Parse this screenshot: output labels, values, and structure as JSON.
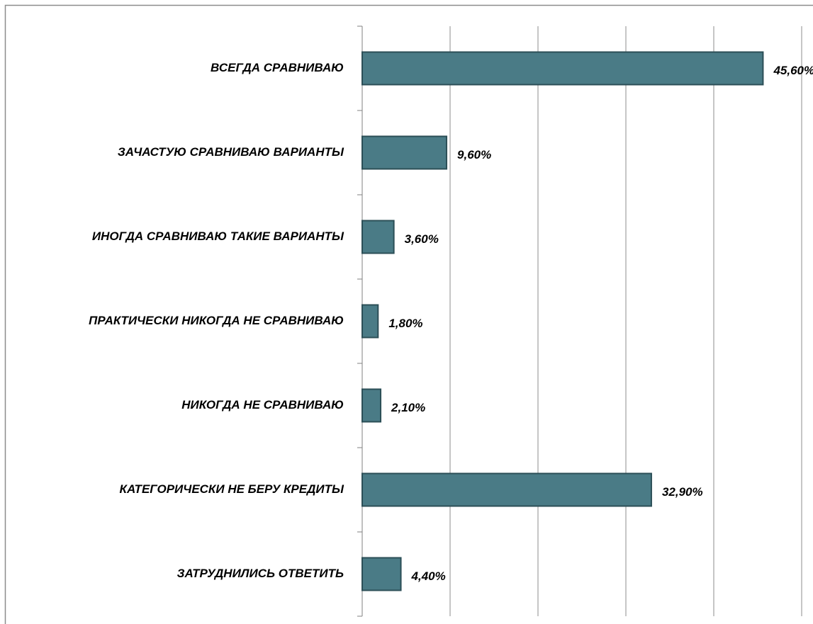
{
  "chart_data": {
    "type": "barh",
    "categories": [
      "ВСЕГДА СРАВНИВАЮ",
      "ЗАЧАСТУЮ СРАВНИВАЮ ВАРИАНТЫ",
      "ИНОГДА СРАВНИВАЮ ТАКИЕ ВАРИАНТЫ",
      "ПРАКТИЧЕСКИ НИКОГДА НЕ СРАВНИВАЮ",
      "НИКОГДА НЕ СРАВНИВАЮ",
      "КАТЕГОРИЧЕСКИ НЕ БЕРУ КРЕДИТЫ",
      "ЗАТРУДНИЛИСЬ ОТВЕТИТЬ"
    ],
    "values": [
      45.6,
      9.6,
      3.6,
      1.8,
      2.1,
      32.9,
      4.4
    ],
    "value_labels": [
      "45,60%",
      "9,60%",
      "3,60%",
      "1,80%",
      "2,10%",
      "32,90%",
      "4,40%"
    ],
    "color": "#4a7b86",
    "xlim": [
      0,
      50
    ],
    "xticks": [
      0,
      10,
      20,
      30,
      40,
      50
    ],
    "grid": true
  }
}
